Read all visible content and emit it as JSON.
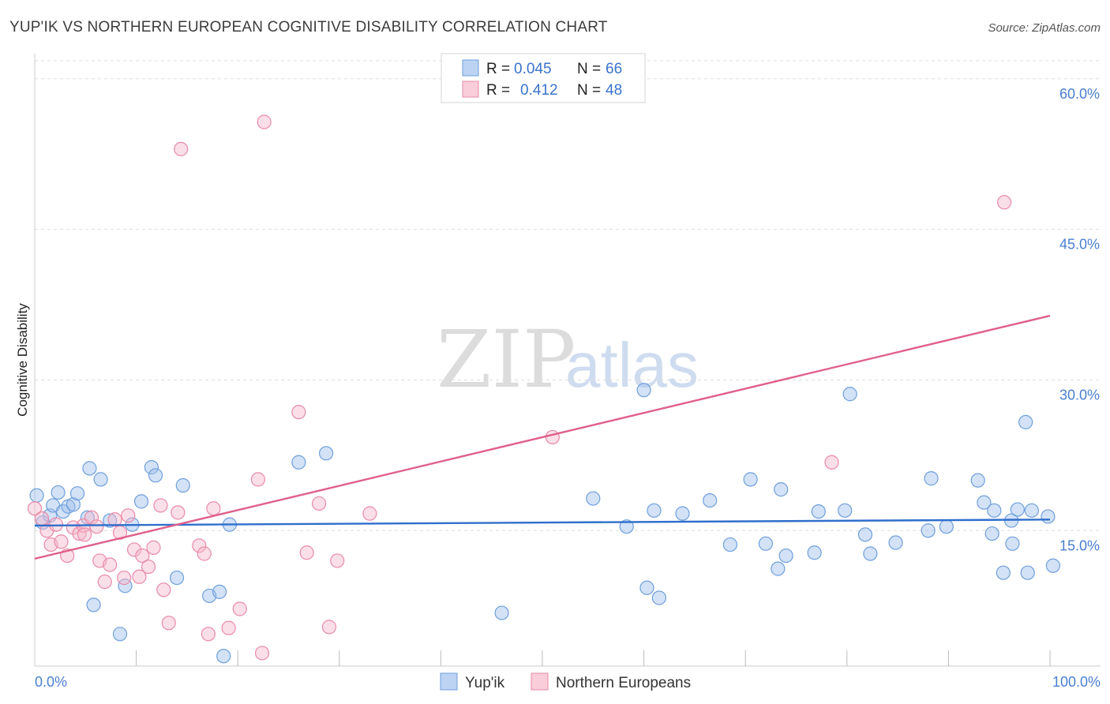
{
  "chart_data": {
    "type": "scatter",
    "title": "YUP'IK VS NORTHERN EUROPEAN COGNITIVE DISABILITY CORRELATION CHART",
    "source": "Source: ZipAtlas.com",
    "xlabel": "",
    "ylabel": "Cognitive Disability",
    "xlim": [
      0,
      100
    ],
    "ylim": [
      1.5,
      62.5
    ],
    "x_tick_labels": [
      "0.0%",
      "100.0%"
    ],
    "y_ticks": [
      15,
      30,
      45,
      60
    ],
    "y_tick_labels": [
      "15.0%",
      "30.0%",
      "45.0%",
      "60.0%"
    ],
    "grid": true,
    "watermark": {
      "zip": "ZIP",
      "atlas": "atlas"
    },
    "legend": {
      "r_label": "R =",
      "n_label": "N =",
      "entries": [
        {
          "r": "0.045",
          "n": "66"
        },
        {
          "r": "0.412",
          "n": "48"
        }
      ]
    },
    "series": [
      {
        "name": "Yup'ik",
        "color": "#9dbfec",
        "edge": "#6f9fdc",
        "trend_color": "#2f6fcc",
        "trend": {
          "x": [
            0,
            100
          ],
          "y": [
            15.5,
            16.1
          ]
        },
        "points": [
          {
            "x": 0.2,
            "y": 18.5
          },
          {
            "x": 0.8,
            "y": 15.8
          },
          {
            "x": 1.5,
            "y": 16.5
          },
          {
            "x": 1.8,
            "y": 17.5
          },
          {
            "x": 2.3,
            "y": 18.8
          },
          {
            "x": 2.8,
            "y": 16.9
          },
          {
            "x": 3.3,
            "y": 17.4
          },
          {
            "x": 3.8,
            "y": 17.6
          },
          {
            "x": 4.2,
            "y": 18.7
          },
          {
            "x": 5.2,
            "y": 16.3
          },
          {
            "x": 5.4,
            "y": 21.2
          },
          {
            "x": 5.8,
            "y": 7.6
          },
          {
            "x": 6.5,
            "y": 20.1
          },
          {
            "x": 7.4,
            "y": 16.0
          },
          {
            "x": 8.4,
            "y": 4.7
          },
          {
            "x": 8.9,
            "y": 9.5
          },
          {
            "x": 9.6,
            "y": 15.6
          },
          {
            "x": 10.5,
            "y": 17.9
          },
          {
            "x": 11.5,
            "y": 21.3
          },
          {
            "x": 11.9,
            "y": 20.5
          },
          {
            "x": 14.0,
            "y": 10.3
          },
          {
            "x": 14.6,
            "y": 19.5
          },
          {
            "x": 17.2,
            "y": 8.5
          },
          {
            "x": 18.2,
            "y": 8.9
          },
          {
            "x": 18.6,
            "y": 2.5
          },
          {
            "x": 19.2,
            "y": 15.6
          },
          {
            "x": 26.0,
            "y": 21.8
          },
          {
            "x": 28.7,
            "y": 22.7
          },
          {
            "x": 46.0,
            "y": 6.8
          },
          {
            "x": 55.0,
            "y": 18.2
          },
          {
            "x": 58.3,
            "y": 15.4
          },
          {
            "x": 60.0,
            "y": 29.0
          },
          {
            "x": 60.3,
            "y": 9.3
          },
          {
            "x": 61.0,
            "y": 17.0
          },
          {
            "x": 61.5,
            "y": 8.3
          },
          {
            "x": 63.8,
            "y": 16.7
          },
          {
            "x": 66.5,
            "y": 18.0
          },
          {
            "x": 68.5,
            "y": 13.6
          },
          {
            "x": 70.5,
            "y": 20.1
          },
          {
            "x": 72.0,
            "y": 13.7
          },
          {
            "x": 73.2,
            "y": 11.2
          },
          {
            "x": 73.5,
            "y": 19.1
          },
          {
            "x": 74.0,
            "y": 12.5
          },
          {
            "x": 76.8,
            "y": 12.8
          },
          {
            "x": 77.2,
            "y": 16.9
          },
          {
            "x": 79.8,
            "y": 17.0
          },
          {
            "x": 80.3,
            "y": 28.6
          },
          {
            "x": 81.8,
            "y": 14.6
          },
          {
            "x": 82.3,
            "y": 12.7
          },
          {
            "x": 84.8,
            "y": 13.8
          },
          {
            "x": 88.0,
            "y": 15.0
          },
          {
            "x": 88.3,
            "y": 20.2
          },
          {
            "x": 89.8,
            "y": 15.4
          },
          {
            "x": 92.9,
            "y": 20.0
          },
          {
            "x": 93.5,
            "y": 17.8
          },
          {
            "x": 94.3,
            "y": 14.7
          },
          {
            "x": 94.5,
            "y": 17.0
          },
          {
            "x": 95.4,
            "y": 10.8
          },
          {
            "x": 96.3,
            "y": 13.7
          },
          {
            "x": 96.2,
            "y": 16.0
          },
          {
            "x": 96.8,
            "y": 17.1
          },
          {
            "x": 97.6,
            "y": 25.8
          },
          {
            "x": 98.2,
            "y": 17.0
          },
          {
            "x": 97.8,
            "y": 10.8
          },
          {
            "x": 99.8,
            "y": 16.4
          },
          {
            "x": 100.3,
            "y": 11.5
          }
        ]
      },
      {
        "name": "Northern Europeans",
        "color": "#f6b9cc",
        "edge": "#e88aa8",
        "trend_color": "#e0608a",
        "trend": {
          "x": [
            0,
            100
          ],
          "y": [
            12.2,
            36.4
          ]
        },
        "points": [
          {
            "x": 0.0,
            "y": 17.2
          },
          {
            "x": 0.7,
            "y": 16.2
          },
          {
            "x": 1.2,
            "y": 15.0
          },
          {
            "x": 1.6,
            "y": 13.6
          },
          {
            "x": 2.1,
            "y": 15.6
          },
          {
            "x": 2.6,
            "y": 13.9
          },
          {
            "x": 3.2,
            "y": 12.5
          },
          {
            "x": 3.8,
            "y": 15.3
          },
          {
            "x": 4.4,
            "y": 14.7
          },
          {
            "x": 4.8,
            "y": 15.5
          },
          {
            "x": 4.9,
            "y": 14.6
          },
          {
            "x": 5.6,
            "y": 16.3
          },
          {
            "x": 6.1,
            "y": 15.4
          },
          {
            "x": 6.4,
            "y": 12.0
          },
          {
            "x": 6.9,
            "y": 9.9
          },
          {
            "x": 7.4,
            "y": 11.6
          },
          {
            "x": 7.9,
            "y": 16.1
          },
          {
            "x": 8.4,
            "y": 14.8
          },
          {
            "x": 8.8,
            "y": 10.3
          },
          {
            "x": 9.2,
            "y": 16.5
          },
          {
            "x": 9.8,
            "y": 13.1
          },
          {
            "x": 10.3,
            "y": 10.4
          },
          {
            "x": 10.6,
            "y": 12.5
          },
          {
            "x": 11.2,
            "y": 11.4
          },
          {
            "x": 11.7,
            "y": 13.3
          },
          {
            "x": 12.4,
            "y": 17.5
          },
          {
            "x": 12.7,
            "y": 9.1
          },
          {
            "x": 13.2,
            "y": 5.8
          },
          {
            "x": 14.1,
            "y": 16.8
          },
          {
            "x": 14.4,
            "y": 53.0
          },
          {
            "x": 16.2,
            "y": 13.5
          },
          {
            "x": 16.7,
            "y": 12.7
          },
          {
            "x": 17.1,
            "y": 4.7
          },
          {
            "x": 17.6,
            "y": 17.2
          },
          {
            "x": 19.1,
            "y": 5.3
          },
          {
            "x": 20.2,
            "y": 7.2
          },
          {
            "x": 22.0,
            "y": 20.1
          },
          {
            "x": 22.4,
            "y": 2.8
          },
          {
            "x": 22.6,
            "y": 55.7
          },
          {
            "x": 26.0,
            "y": 26.8
          },
          {
            "x": 26.8,
            "y": 12.8
          },
          {
            "x": 28.0,
            "y": 17.7
          },
          {
            "x": 29.0,
            "y": 5.4
          },
          {
            "x": 29.8,
            "y": 12.0
          },
          {
            "x": 33.0,
            "y": 16.7
          },
          {
            "x": 51.0,
            "y": 24.3
          },
          {
            "x": 78.5,
            "y": 21.8
          },
          {
            "x": 95.5,
            "y": 47.7
          }
        ]
      }
    ],
    "bottom_legend": [
      "Yup'ik",
      "Northern Europeans"
    ]
  }
}
